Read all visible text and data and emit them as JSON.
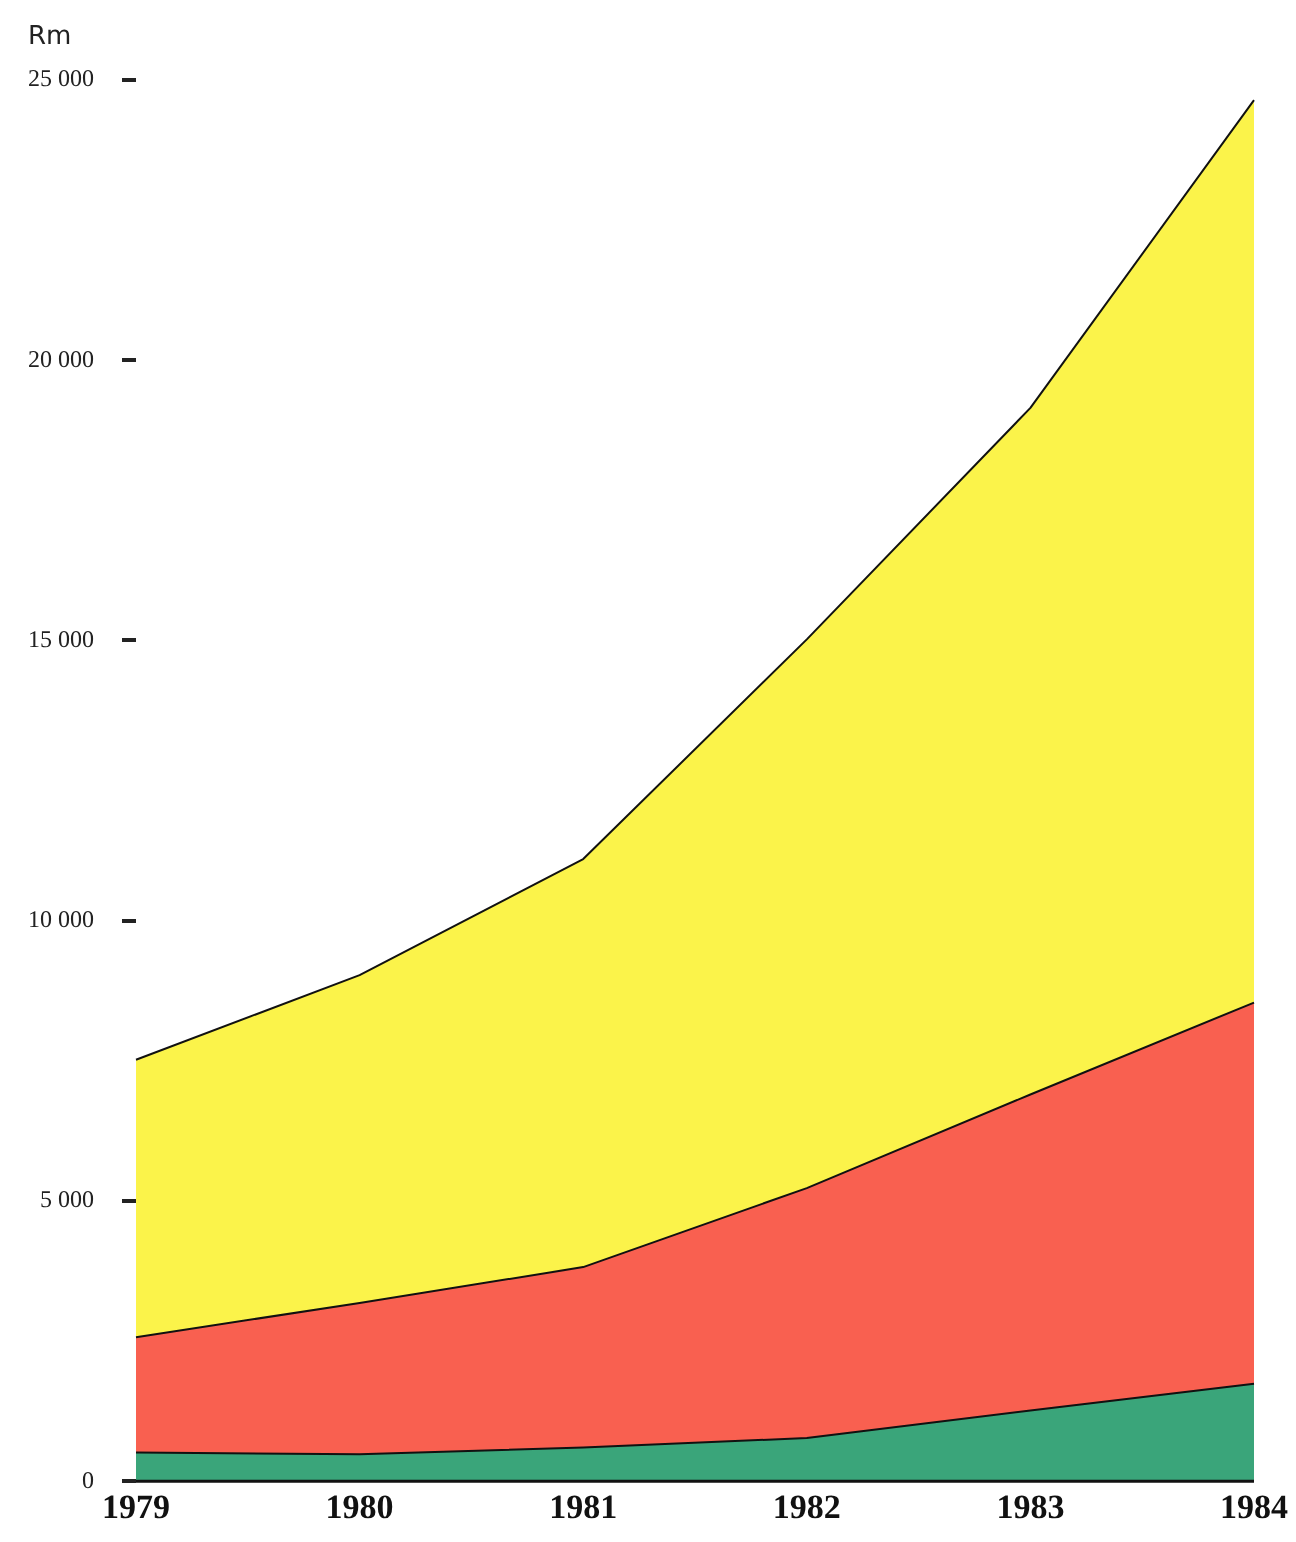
{
  "chart_data": {
    "type": "area",
    "stacked": true,
    "ylabel": "Rm",
    "categories": [
      "1979",
      "1980",
      "1981",
      "1982",
      "1983",
      "1984"
    ],
    "series": [
      {
        "color": "#3aa57a",
        "values": [
          510,
          480,
          600,
          770,
          1260,
          1740
        ]
      },
      {
        "color": "#f96050",
        "values": [
          2060,
          2700,
          3220,
          4460,
          5640,
          6800
        ]
      },
      {
        "color": "#fbf34a",
        "values": [
          4950,
          5850,
          7280,
          9790,
          12250,
          16100
        ]
      }
    ],
    "ylim": [
      0,
      25000
    ],
    "yticks": [
      {
        "value": 0,
        "label": "0"
      },
      {
        "value": 5000,
        "label": "5 000"
      },
      {
        "value": 10000,
        "label": "10 000"
      },
      {
        "value": 15000,
        "label": "15 000"
      },
      {
        "value": 20000,
        "label": "20 000"
      },
      {
        "value": 25000,
        "label": "25 000"
      }
    ],
    "grid": false,
    "legend": false
  }
}
